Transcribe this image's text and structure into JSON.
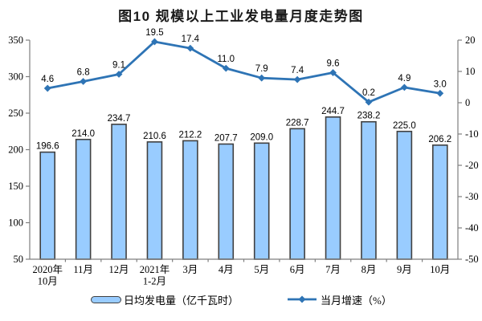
{
  "chart_data": {
    "type": "bar+line combo",
    "title": "图10 规模以上工业发电量月度走势图",
    "categories": [
      [
        "2020年",
        "10月"
      ],
      [
        "11月"
      ],
      [
        "12月"
      ],
      [
        "2021年",
        "1-2月"
      ],
      [
        "3月"
      ],
      [
        "4月"
      ],
      [
        "5月"
      ],
      [
        "6月"
      ],
      [
        "7月"
      ],
      [
        "8月"
      ],
      [
        "9月"
      ],
      [
        "10月"
      ]
    ],
    "series": [
      {
        "name": "日均发电量（亿千瓦时）",
        "type": "bar",
        "axis": "left",
        "values": [
          196.6,
          214.0,
          234.7,
          210.6,
          212.2,
          207.7,
          209.0,
          228.7,
          244.7,
          238.2,
          225.0,
          206.2
        ],
        "labels": [
          "196.6",
          "214.0",
          "234.7",
          "210.6",
          "212.2",
          "207.7",
          "209.0",
          "228.7",
          "244.7",
          "238.2",
          "225.0",
          "206.2"
        ]
      },
      {
        "name": "当月增速（%）",
        "type": "line",
        "axis": "right",
        "values": [
          4.6,
          6.8,
          9.1,
          19.5,
          17.4,
          11.0,
          7.9,
          7.4,
          9.6,
          0.2,
          4.9,
          3.0
        ],
        "labels": [
          "4.6",
          "6.8",
          "9.1",
          "19.5",
          "17.4",
          "11.0",
          "7.9",
          "7.4",
          "9.6",
          "0.2",
          "4.9",
          "3.0"
        ]
      }
    ],
    "left_axis": {
      "min": 50,
      "max": 350,
      "tick_labels": [
        "350",
        "300",
        "250",
        "200",
        "150",
        "100",
        "50"
      ]
    },
    "right_axis": {
      "min": -50,
      "max": 20,
      "tick_labels": [
        "20",
        "10",
        "0",
        "-10",
        "-20",
        "-30",
        "-40",
        "-50"
      ]
    },
    "legend": [
      {
        "label": "日均发电量（亿千瓦时）",
        "type": "bar"
      },
      {
        "label": "当月增速（%）",
        "type": "line"
      }
    ],
    "colors": {
      "bar_fill": "#99CCFF",
      "bar_border": "#404040",
      "line": "#2E74B5",
      "axis": "#7F7F7F",
      "text": "#000000"
    },
    "layout_hints": {
      "grid": "off",
      "legend_position": "bottom",
      "bar_baseline": 50
    }
  }
}
